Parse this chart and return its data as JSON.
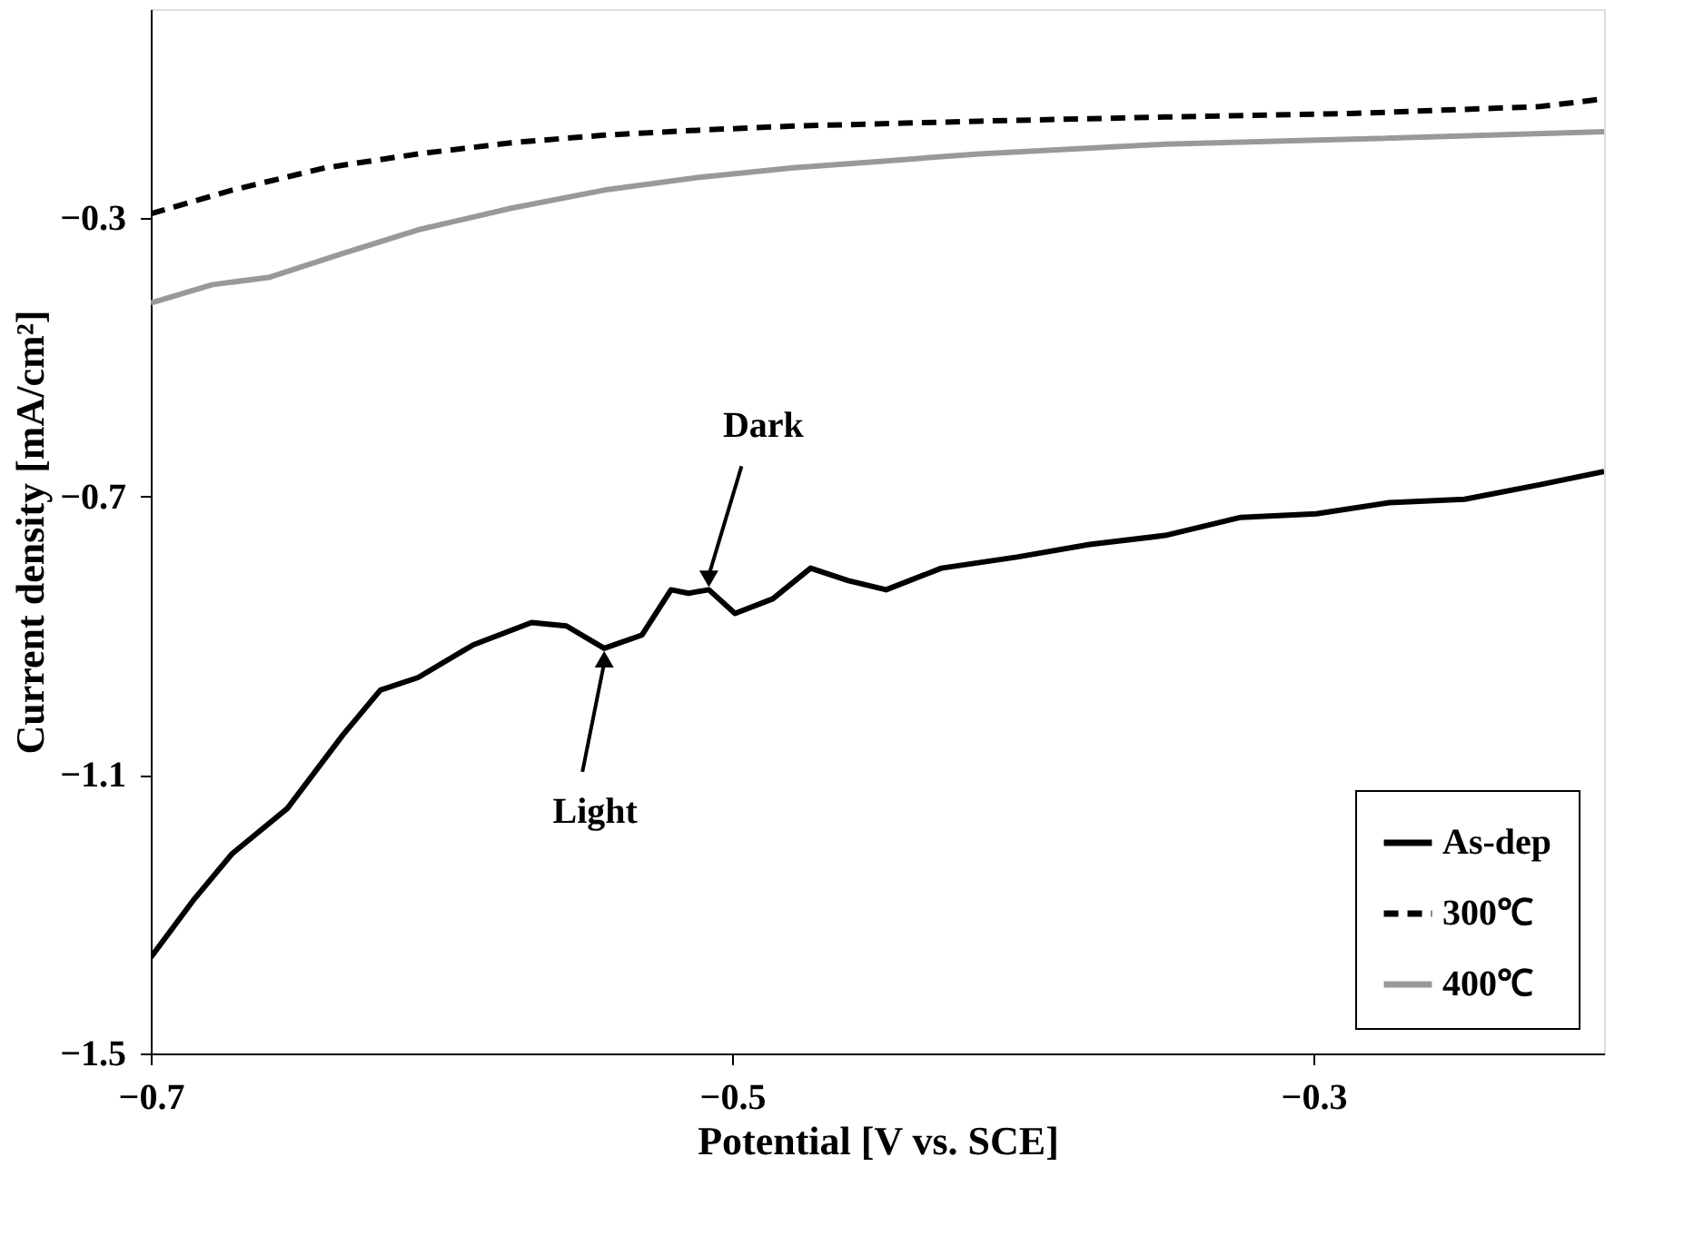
{
  "chart_data": {
    "type": "line",
    "xlabel": "Potential [V vs. SCE]",
    "ylabel": "Current density [mA/cm²]",
    "xlim": [
      -0.7,
      -0.2
    ],
    "xticks": [
      -0.7,
      -0.5,
      -0.3
    ],
    "ylim": [
      -1.5,
      0
    ],
    "yticks": [
      -1.5,
      -1.1,
      -0.7,
      -0.3
    ],
    "grid": false,
    "legend": "bottom right",
    "marker": "none",
    "series": [
      {
        "name": "As-dep",
        "color": "#000000",
        "line_style": "solid",
        "x": [
          -0.7,
          -0.685,
          -0.672,
          -0.653,
          -0.634,
          -0.621,
          -0.608,
          -0.589,
          -0.569,
          -0.557,
          -0.544,
          -0.531,
          -0.521,
          -0.515,
          -0.508,
          -0.499,
          -0.486,
          -0.473,
          -0.46,
          -0.447,
          -0.428,
          -0.402,
          -0.377,
          -0.351,
          -0.325,
          -0.299,
          -0.274,
          -0.248,
          -0.222,
          -0.2
        ],
        "values": [
          -1.362,
          -1.278,
          -1.213,
          -1.148,
          -1.043,
          -0.978,
          -0.96,
          -0.913,
          -0.881,
          -0.886,
          -0.918,
          -0.899,
          -0.834,
          -0.839,
          -0.834,
          -0.868,
          -0.847,
          -0.803,
          -0.821,
          -0.834,
          -0.803,
          -0.787,
          -0.769,
          -0.756,
          -0.73,
          -0.725,
          -0.709,
          -0.704,
          -0.683,
          -0.664
        ]
      },
      {
        "name": "300℃",
        "color": "#000000",
        "line_style": "dashed",
        "x": [
          -0.7,
          -0.672,
          -0.64,
          -0.608,
          -0.576,
          -0.544,
          -0.512,
          -0.479,
          -0.415,
          -0.351,
          -0.287,
          -0.222,
          -0.2
        ],
        "values": [
          -0.294,
          -0.26,
          -0.228,
          -0.208,
          -0.192,
          -0.181,
          -0.174,
          -0.168,
          -0.161,
          -0.155,
          -0.15,
          -0.14,
          -0.129
        ]
      },
      {
        "name": "400℃",
        "color": "#999999",
        "line_style": "solid",
        "x": [
          -0.7,
          -0.679,
          -0.659,
          -0.634,
          -0.608,
          -0.576,
          -0.544,
          -0.512,
          -0.479,
          -0.447,
          -0.415,
          -0.351,
          -0.287,
          -0.2
        ],
        "values": [
          -0.422,
          -0.396,
          -0.385,
          -0.351,
          -0.317,
          -0.286,
          -0.26,
          -0.242,
          -0.228,
          -0.218,
          -0.208,
          -0.194,
          -0.187,
          -0.176
        ]
      }
    ],
    "annotations": [
      {
        "text": "Dark",
        "x": -0.508,
        "y": -0.834
      },
      {
        "text": "Light",
        "x": -0.544,
        "y": -0.918
      }
    ]
  }
}
